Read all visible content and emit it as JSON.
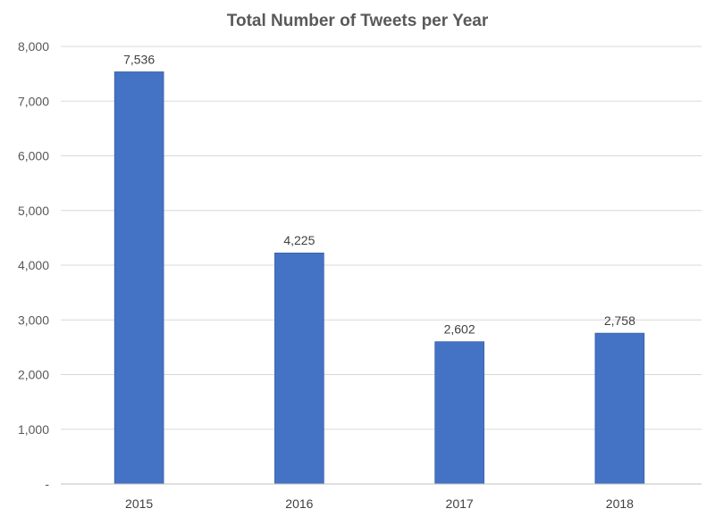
{
  "chart_data": {
    "type": "bar",
    "title": "Total Number of Tweets per Year",
    "xlabel": "",
    "ylabel": "",
    "categories": [
      "2015",
      "2016",
      "2017",
      "2018"
    ],
    "values": [
      7536,
      4225,
      2602,
      2758
    ],
    "data_labels": [
      "7,536",
      "4,225",
      "2,602",
      "2,758"
    ],
    "ylim": [
      0,
      8000
    ],
    "yticks": [
      0,
      1000,
      2000,
      3000,
      4000,
      5000,
      6000,
      7000,
      8000
    ],
    "ytick_labels": [
      "-",
      "1,000",
      "2,000",
      "3,000",
      "4,000",
      "5,000",
      "6,000",
      "7,000",
      "8,000"
    ],
    "grid": true,
    "legend": "none",
    "bar_color": "#4472C4"
  }
}
